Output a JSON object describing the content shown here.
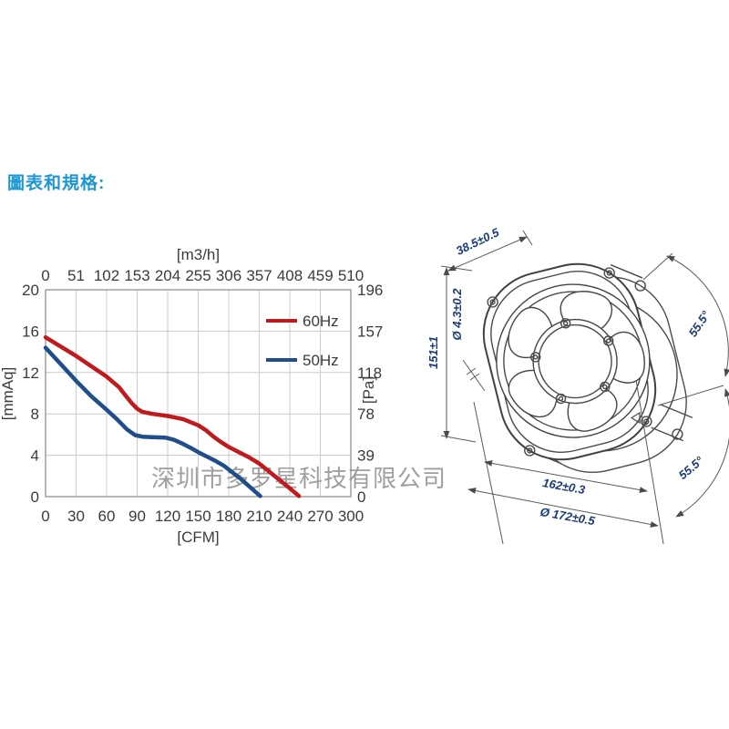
{
  "page": {
    "title": "圖表和規格:",
    "title_color": "#1e96d2",
    "background": "#ffffff"
  },
  "watermark": {
    "text": "深圳市多罗星科技有限公司",
    "color": "#8f8f8f"
  },
  "chart_data": {
    "type": "line",
    "title": "",
    "grid": true,
    "legend_position": "top-right",
    "colors": {
      "grid": "#cccccc",
      "border": "#9a9a9a",
      "tick_text": "#3b3b3b"
    },
    "x_bottom": {
      "label": "[CFM]",
      "min": 0,
      "max": 300,
      "ticks": [
        0,
        30,
        60,
        90,
        120,
        150,
        180,
        210,
        240,
        270,
        300
      ]
    },
    "x_top": {
      "label": "[m3/h]",
      "min": 0,
      "max": 510,
      "ticks": [
        0,
        51,
        102,
        153,
        204,
        255,
        306,
        357,
        408,
        459,
        510
      ]
    },
    "y_left": {
      "label": "[mmAq]",
      "min": 0,
      "max": 20,
      "ticks": [
        20,
        16,
        12,
        8,
        4,
        0
      ]
    },
    "y_right": {
      "label": "[Pa]",
      "min": 0,
      "max": 196,
      "ticks": [
        196,
        157,
        118,
        78,
        39,
        0
      ]
    },
    "series": [
      {
        "name": "60Hz",
        "color": "#bf1b1e",
        "points": [
          [
            0,
            15.4
          ],
          [
            15,
            14.5
          ],
          [
            30,
            13.6
          ],
          [
            45,
            12.6
          ],
          [
            60,
            11.6
          ],
          [
            72,
            10.6
          ],
          [
            80,
            9.6
          ],
          [
            85,
            9.0
          ],
          [
            90,
            8.5
          ],
          [
            95,
            8.2
          ],
          [
            105,
            8.0
          ],
          [
            120,
            7.8
          ],
          [
            135,
            7.5
          ],
          [
            150,
            6.9
          ],
          [
            158,
            6.4
          ],
          [
            165,
            5.8
          ],
          [
            172,
            5.3
          ],
          [
            180,
            4.8
          ],
          [
            190,
            4.3
          ],
          [
            200,
            3.8
          ],
          [
            210,
            3.2
          ],
          [
            220,
            2.4
          ],
          [
            230,
            1.6
          ],
          [
            240,
            0.8
          ],
          [
            249,
            0.05
          ]
        ]
      },
      {
        "name": "50Hz",
        "color": "#1f4e8a",
        "points": [
          [
            0,
            14.4
          ],
          [
            15,
            12.8
          ],
          [
            30,
            11.2
          ],
          [
            45,
            9.7
          ],
          [
            60,
            8.4
          ],
          [
            70,
            7.5
          ],
          [
            80,
            6.5
          ],
          [
            88,
            5.95
          ],
          [
            95,
            5.8
          ],
          [
            105,
            5.75
          ],
          [
            118,
            5.7
          ],
          [
            126,
            5.5
          ],
          [
            135,
            5.1
          ],
          [
            143,
            4.7
          ],
          [
            150,
            4.3
          ],
          [
            160,
            3.8
          ],
          [
            168,
            3.4
          ],
          [
            175,
            3.0
          ],
          [
            183,
            2.4
          ],
          [
            192,
            1.7
          ],
          [
            200,
            1.0
          ],
          [
            207,
            0.4
          ],
          [
            211,
            0.05
          ]
        ]
      }
    ]
  },
  "fan_drawing": {
    "line_color": "#4a4a4a",
    "dim_color": "#1a3b75",
    "depth": "38.5±0.5",
    "mounting_hole": "Ø 4.3±0.2",
    "height": "151±1",
    "angle_top": "55.5°",
    "angle_bottom": "55.5°",
    "hole_spacing": "162±0.3",
    "outer_diameter": "Ø 172±0.5"
  }
}
